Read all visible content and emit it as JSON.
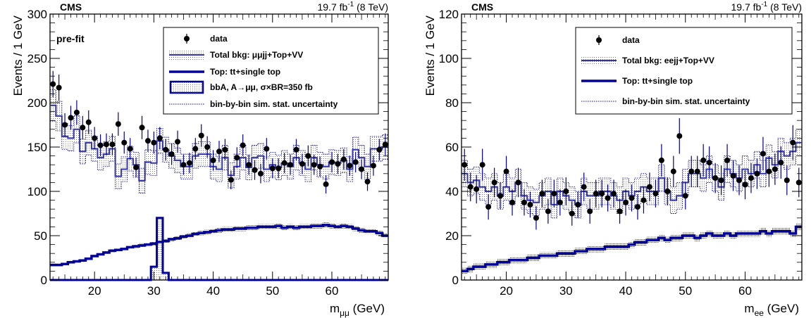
{
  "chart_data": [
    {
      "type": "line",
      "experiment": "CMS",
      "lumi_value": "19.7 fb",
      "lumi_sup": "-1",
      "lumi_energy": " (8 TeV)",
      "annotation": "pre-fit",
      "ylabel": "Events / 1 GeV",
      "xlabel_main": "m",
      "xlabel_sub": "μμ",
      "xlabel_unit": " (GeV)",
      "xlim": [
        12.5,
        69.5
      ],
      "ylim": [
        0,
        300
      ],
      "xticks": [
        20,
        30,
        40,
        50,
        60
      ],
      "yticks": [
        0,
        50,
        100,
        150,
        200,
        250,
        300
      ],
      "legend": {
        "placement": "top-right",
        "entries": [
          {
            "key": "data",
            "label": "data"
          },
          {
            "key": "band",
            "label": "Total bkg: μμjj+Top+VV"
          },
          {
            "key": "top",
            "label": "Top: tt+single top"
          },
          {
            "key": "signal",
            "label": "bbA, A→μμ, σ×BR=350 fb"
          },
          {
            "key": "dotted",
            "label": "bin-by-bin sim. stat. uncertainty"
          }
        ]
      },
      "x": [
        13,
        14,
        15,
        16,
        17,
        18,
        19,
        20,
        21,
        22,
        23,
        24,
        25,
        26,
        27,
        28,
        29,
        30,
        31,
        32,
        33,
        34,
        35,
        36,
        37,
        38,
        39,
        40,
        41,
        42,
        43,
        44,
        45,
        46,
        47,
        48,
        49,
        50,
        51,
        52,
        53,
        54,
        55,
        56,
        57,
        58,
        59,
        60,
        61,
        62,
        63,
        64,
        65,
        66,
        67,
        68,
        69
      ],
      "series": [
        {
          "key": "data",
          "values": [
            221,
            217,
            175,
            183,
            189,
            172,
            178,
            160,
            152,
            153,
            153,
            176,
            155,
            148,
            127,
            172,
            157,
            155,
            160,
            147,
            142,
            156,
            130,
            132,
            148,
            163,
            150,
            135,
            145,
            147,
            113,
            138,
            152,
            130,
            124,
            120,
            148,
            126,
            126,
            132,
            130,
            147,
            131,
            140,
            130,
            128,
            108,
            133,
            131,
            136,
            129,
            133,
            125,
            111,
            129,
            147,
            153
          ]
        },
        {
          "key": "total_bkg",
          "values": [
            197,
            185,
            162,
            160,
            170,
            145,
            155,
            148,
            138,
            142,
            148,
            117,
            125,
            137,
            130,
            112,
            133,
            132,
            157,
            147,
            140,
            135,
            128,
            128,
            140,
            142,
            142,
            128,
            125,
            138,
            118,
            128,
            138,
            127,
            138,
            140,
            125,
            130,
            127,
            132,
            128,
            138,
            132,
            125,
            138,
            130,
            128,
            133,
            132,
            135,
            125,
            147,
            138,
            128,
            148,
            148,
            150
          ]
        },
        {
          "key": "top",
          "values": [
            17,
            17,
            18,
            20,
            21,
            22,
            24,
            27,
            29,
            31,
            33,
            34,
            35,
            37,
            38,
            39,
            40,
            41,
            43,
            44,
            46,
            47,
            49,
            50,
            52,
            53,
            54,
            55,
            56,
            57,
            57,
            58,
            58,
            59,
            59,
            60,
            60,
            60,
            61,
            59,
            60,
            59,
            60,
            60,
            61,
            61,
            62,
            61,
            60,
            61,
            60,
            58,
            56,
            55,
            55,
            53,
            50
          ]
        },
        {
          "key": "signal",
          "values": [
            0,
            0,
            0,
            0,
            0,
            0,
            0,
            0,
            0,
            0,
            0,
            0,
            0,
            0,
            0,
            0,
            0,
            15,
            70,
            8,
            0,
            0,
            0,
            0,
            0,
            0,
            0,
            0,
            0,
            0,
            0,
            0,
            0,
            0,
            0,
            0,
            0,
            0,
            0,
            0,
            0,
            0,
            0,
            0,
            0,
            0,
            0,
            0,
            0,
            0,
            0,
            0,
            0,
            0,
            0,
            0,
            0
          ]
        }
      ]
    },
    {
      "type": "line",
      "experiment": "CMS",
      "lumi_value": "19.7 fb",
      "lumi_sup": "-1",
      "lumi_energy": " (8 TeV)",
      "ylabel": "Events / 1 GeV",
      "xlabel_main": "m",
      "xlabel_sub": "ee",
      "xlabel_unit": " (GeV)",
      "xlim": [
        12.5,
        69.5
      ],
      "ylim": [
        0,
        120
      ],
      "xticks": [
        20,
        30,
        40,
        50,
        60
      ],
      "yticks": [
        0,
        20,
        40,
        60,
        80,
        100,
        120
      ],
      "legend": {
        "placement": "top-right",
        "entries": [
          {
            "key": "data",
            "label": "data"
          },
          {
            "key": "band",
            "label": "Total bkg: eejj+Top+VV"
          },
          {
            "key": "top",
            "label": "Top: tt+single top"
          },
          {
            "key": "dotted",
            "label": "bin-by-bin sim. stat. uncertainty"
          }
        ]
      },
      "x": [
        13,
        14,
        15,
        16,
        17,
        18,
        19,
        20,
        21,
        22,
        23,
        24,
        25,
        26,
        27,
        28,
        29,
        30,
        31,
        32,
        33,
        34,
        35,
        36,
        37,
        38,
        39,
        40,
        41,
        42,
        43,
        44,
        45,
        46,
        47,
        48,
        49,
        50,
        51,
        52,
        53,
        54,
        55,
        56,
        57,
        58,
        59,
        60,
        61,
        62,
        63,
        64,
        65,
        66,
        67,
        68,
        69
      ],
      "series": [
        {
          "key": "data",
          "values": [
            52,
            42,
            41,
            52,
            33,
            44,
            38,
            49,
            35,
            44,
            35,
            34,
            28,
            39,
            31,
            39,
            35,
            40,
            30,
            34,
            42,
            31,
            39,
            39,
            37,
            39,
            31,
            35,
            37,
            33,
            36,
            42,
            39,
            54,
            40,
            49,
            65,
            38,
            49,
            49,
            54,
            53,
            46,
            45,
            54,
            47,
            45,
            43,
            46,
            48,
            57,
            49,
            50,
            53,
            45,
            62,
            44
          ]
        },
        {
          "key": "total_bkg",
          "values": [
            48,
            44,
            45,
            42,
            40,
            42,
            38,
            42,
            40,
            44,
            38,
            36,
            35,
            38,
            40,
            34,
            40,
            38,
            36,
            34,
            40,
            38,
            38,
            40,
            40,
            38,
            36,
            40,
            38,
            40,
            42,
            40,
            40,
            46,
            40,
            36,
            38,
            44,
            48,
            48,
            46,
            50,
            46,
            42,
            50,
            48,
            46,
            50,
            48,
            52,
            48,
            55,
            52,
            58,
            56,
            58,
            62
          ]
        },
        {
          "key": "top",
          "values": [
            4,
            5,
            6,
            6,
            7,
            7,
            8,
            8,
            9,
            9,
            9,
            10,
            10,
            11,
            11,
            11,
            12,
            12,
            12,
            13,
            13,
            14,
            14,
            14,
            15,
            15,
            15,
            15,
            16,
            17,
            17,
            18,
            18,
            19,
            18,
            19,
            19,
            20,
            20,
            19,
            20,
            21,
            20,
            20,
            21,
            20,
            21,
            21,
            21,
            21,
            22,
            21,
            22,
            22,
            22,
            21,
            24
          ]
        }
      ]
    }
  ]
}
